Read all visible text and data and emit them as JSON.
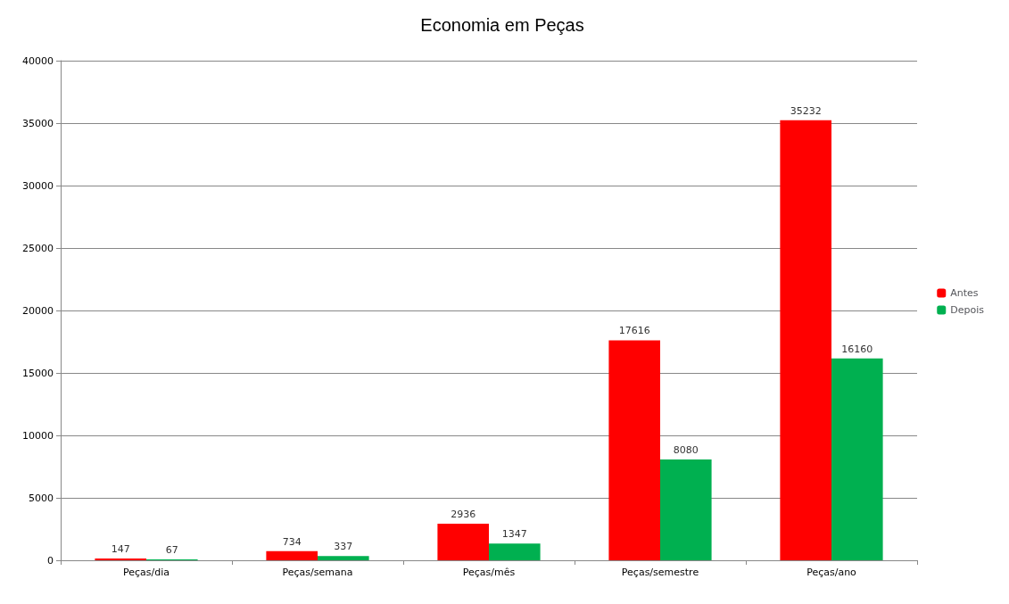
{
  "chart_data": {
    "type": "bar",
    "title": "Economia em Peças",
    "categories": [
      "Peças/dia",
      "Peças/semana",
      "Peças/mês",
      "Peças/semestre",
      "Peças/ano"
    ],
    "series": [
      {
        "name": "Antes",
        "color": "#ff0000",
        "values": [
          147,
          734,
          2936,
          17616,
          35232
        ]
      },
      {
        "name": "Depois",
        "color": "#00b050",
        "values": [
          67,
          337,
          1347,
          8080,
          16160
        ]
      }
    ],
    "ylim": [
      0,
      40000
    ],
    "yticks": [
      0,
      5000,
      10000,
      15000,
      20000,
      25000,
      30000,
      35000,
      40000
    ],
    "grid": "y",
    "legend": "right",
    "data_labels": true
  }
}
